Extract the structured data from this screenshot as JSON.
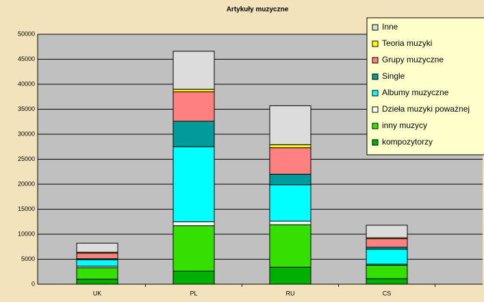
{
  "chart_data": {
    "type": "stacked-bar",
    "title": "Artykuły muzyczne",
    "categories": [
      "UK",
      "PL",
      "RU",
      "CS"
    ],
    "series": [
      {
        "name": "kompozytorzy",
        "color": "#00b000",
        "values": [
          1000,
          2600,
          3400,
          1100
        ]
      },
      {
        "name": "inny muzycy",
        "color": "#33e000",
        "values": [
          2300,
          9100,
          8500,
          2700
        ]
      },
      {
        "name": "Dzieła muzyki poważnej",
        "color": "#ffffff",
        "values": [
          300,
          800,
          700,
          200
        ]
      },
      {
        "name": "Albumy muzyczne",
        "color": "#00ffff",
        "values": [
          1300,
          15000,
          7300,
          3000
        ]
      },
      {
        "name": "Single",
        "color": "#009c9c",
        "values": [
          200,
          5100,
          2100,
          400
        ]
      },
      {
        "name": "Grupy muzyczne",
        "color": "#ff8080",
        "values": [
          1100,
          5900,
          5300,
          1700
        ]
      },
      {
        "name": "Teoria muzyki",
        "color": "#ffff00",
        "values": [
          200,
          500,
          600,
          200
        ]
      },
      {
        "name": "Inne",
        "color": "#dcdcdc",
        "values": [
          1800,
          7600,
          7800,
          2500
        ]
      }
    ],
    "ylim": [
      0,
      50000
    ],
    "yticks": [
      0,
      5000,
      10000,
      15000,
      20000,
      25000,
      30000,
      35000,
      40000,
      45000,
      50000
    ],
    "grid": true,
    "legend": "top-right"
  }
}
